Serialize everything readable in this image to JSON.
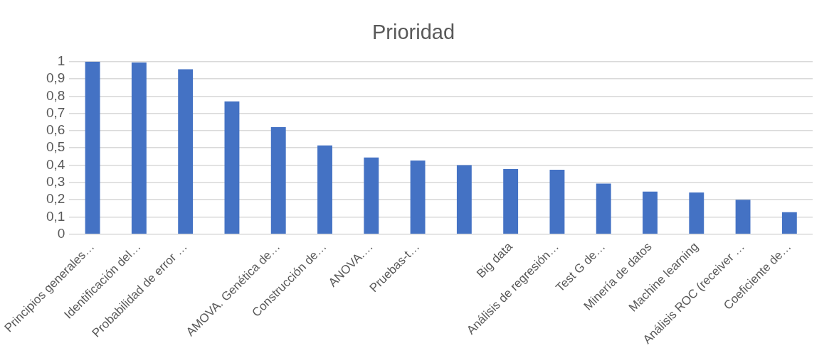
{
  "chart_data": {
    "type": "bar",
    "title": "Prioridad",
    "categories": [
      "Principios generales…",
      "Identificación del…",
      "Probabilidad de error …",
      null,
      "AMOVA. Genética de…",
      "Construcción de…",
      "ANOVA.…",
      "Pruebas-t…",
      null,
      "Big data",
      "Análisis de regresión…",
      "Test G de…",
      "Minería de datos",
      "Machine learning",
      "Análisis ROC (receiver …",
      "Coeficiente de…"
    ],
    "values": [
      1.0,
      0.995,
      0.956,
      0.77,
      0.62,
      0.514,
      0.444,
      0.427,
      0.4,
      0.377,
      0.373,
      0.293,
      0.247,
      0.241,
      0.199,
      0.127
    ],
    "color": "#4472c4",
    "ylim": [
      0,
      1
    ],
    "yticks": [
      0,
      {
        "value": 0.1,
        "label": "0,1"
      },
      {
        "value": 0.2,
        "label": "0,2"
      },
      {
        "value": 0.3,
        "label": "0,3"
      },
      {
        "value": 0.4,
        "label": "0,4"
      },
      {
        "value": 0.5,
        "label": "0,5"
      },
      {
        "value": 0.6,
        "label": "0,6"
      },
      {
        "value": 0.7,
        "label": "0,7"
      },
      {
        "value": 0.8,
        "label": "0,8"
      },
      {
        "value": 0.9,
        "label": "0,9"
      },
      1
    ],
    "grid": "y"
  }
}
